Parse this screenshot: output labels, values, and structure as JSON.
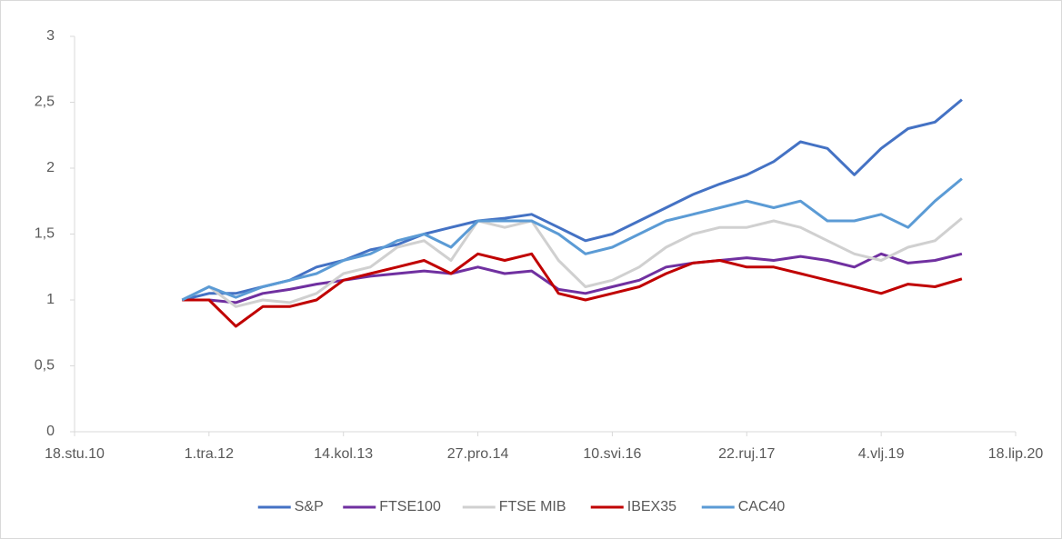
{
  "chart_data": {
    "type": "line",
    "x": [
      40900,
      41000,
      41100,
      41200,
      41300,
      41400,
      41500,
      41600,
      41700,
      41800,
      41900,
      42000,
      42100,
      42200,
      42300,
      42400,
      42500,
      42600,
      42700,
      42800,
      42900,
      43000,
      43100,
      43200,
      43300,
      43400,
      43500,
      43600,
      43700,
      43800
    ],
    "series": [
      {
        "name": "S&P",
        "color": "#4472c4",
        "values": [
          1.0,
          1.05,
          1.05,
          1.1,
          1.15,
          1.25,
          1.3,
          1.38,
          1.42,
          1.5,
          1.55,
          1.6,
          1.62,
          1.65,
          1.55,
          1.45,
          1.5,
          1.6,
          1.7,
          1.8,
          1.88,
          1.95,
          2.05,
          2.2,
          2.15,
          1.95,
          2.15,
          2.3,
          2.35,
          2.52
        ]
      },
      {
        "name": "FTSE100",
        "color": "#7030a0",
        "values": [
          1.0,
          1.0,
          0.98,
          1.05,
          1.08,
          1.12,
          1.15,
          1.18,
          1.2,
          1.22,
          1.2,
          1.25,
          1.2,
          1.22,
          1.08,
          1.05,
          1.1,
          1.15,
          1.25,
          1.28,
          1.3,
          1.32,
          1.3,
          1.33,
          1.3,
          1.25,
          1.35,
          1.28,
          1.3,
          1.35
        ]
      },
      {
        "name": "FTSE MIB",
        "color": "#d0d0d0",
        "values": [
          1.0,
          1.1,
          0.95,
          1.0,
          0.98,
          1.05,
          1.2,
          1.25,
          1.4,
          1.45,
          1.3,
          1.6,
          1.55,
          1.6,
          1.3,
          1.1,
          1.15,
          1.25,
          1.4,
          1.5,
          1.55,
          1.55,
          1.6,
          1.55,
          1.45,
          1.35,
          1.3,
          1.4,
          1.45,
          1.62
        ]
      },
      {
        "name": "IBEX35",
        "color": "#c00000",
        "values": [
          1.0,
          1.0,
          0.8,
          0.95,
          0.95,
          1.0,
          1.15,
          1.2,
          1.25,
          1.3,
          1.2,
          1.35,
          1.3,
          1.35,
          1.05,
          1.0,
          1.05,
          1.1,
          1.2,
          1.28,
          1.3,
          1.25,
          1.25,
          1.2,
          1.15,
          1.1,
          1.05,
          1.12,
          1.1,
          1.16
        ]
      },
      {
        "name": "CAC40",
        "color": "#5b9bd5",
        "values": [
          1.0,
          1.1,
          1.02,
          1.1,
          1.15,
          1.2,
          1.3,
          1.35,
          1.45,
          1.5,
          1.4,
          1.6,
          1.6,
          1.6,
          1.5,
          1.35,
          1.4,
          1.5,
          1.6,
          1.65,
          1.7,
          1.75,
          1.7,
          1.75,
          1.6,
          1.6,
          1.65,
          1.55,
          1.75,
          1.92
        ]
      }
    ],
    "xlim": [
      40500,
      44000
    ],
    "xticks": [
      {
        "value": 40500,
        "label": "18.stu.10"
      },
      {
        "value": 41000,
        "label": "1.tra.12"
      },
      {
        "value": 41500,
        "label": "14.kol.13"
      },
      {
        "value": 42000,
        "label": "27.pro.14"
      },
      {
        "value": 42500,
        "label": "10.svi.16"
      },
      {
        "value": 43000,
        "label": "22.ruj.17"
      },
      {
        "value": 43500,
        "label": "4.vlj.19"
      },
      {
        "value": 44000,
        "label": "18.lip.20"
      }
    ],
    "ylim": [
      0,
      3
    ],
    "yticks": [
      0,
      {
        "value": 0.5,
        "label": "0,5"
      },
      1,
      {
        "value": 1.5,
        "label": "1,5"
      },
      2,
      {
        "value": 2.5,
        "label": "2,5"
      },
      3
    ],
    "legend": "bottom"
  }
}
